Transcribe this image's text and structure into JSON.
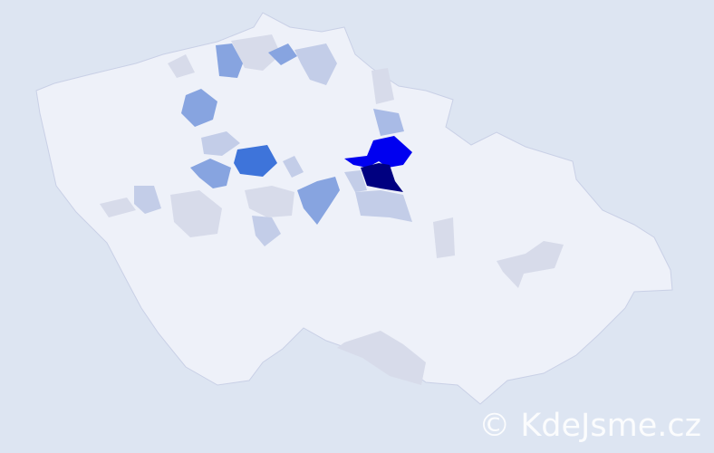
{
  "map": {
    "colors": {
      "background": "#dde5f2",
      "base": "#eef1f9",
      "border": "#c9d0e6",
      "very_light": "#d7dbea",
      "light": "#c3cde8",
      "medium_light": "#a9bbe6",
      "medium": "#87a4e0",
      "strong": "#3e74da",
      "bright": "#0000f0",
      "darkest": "#000080"
    }
  },
  "watermark": "© KdeJsme.cz"
}
